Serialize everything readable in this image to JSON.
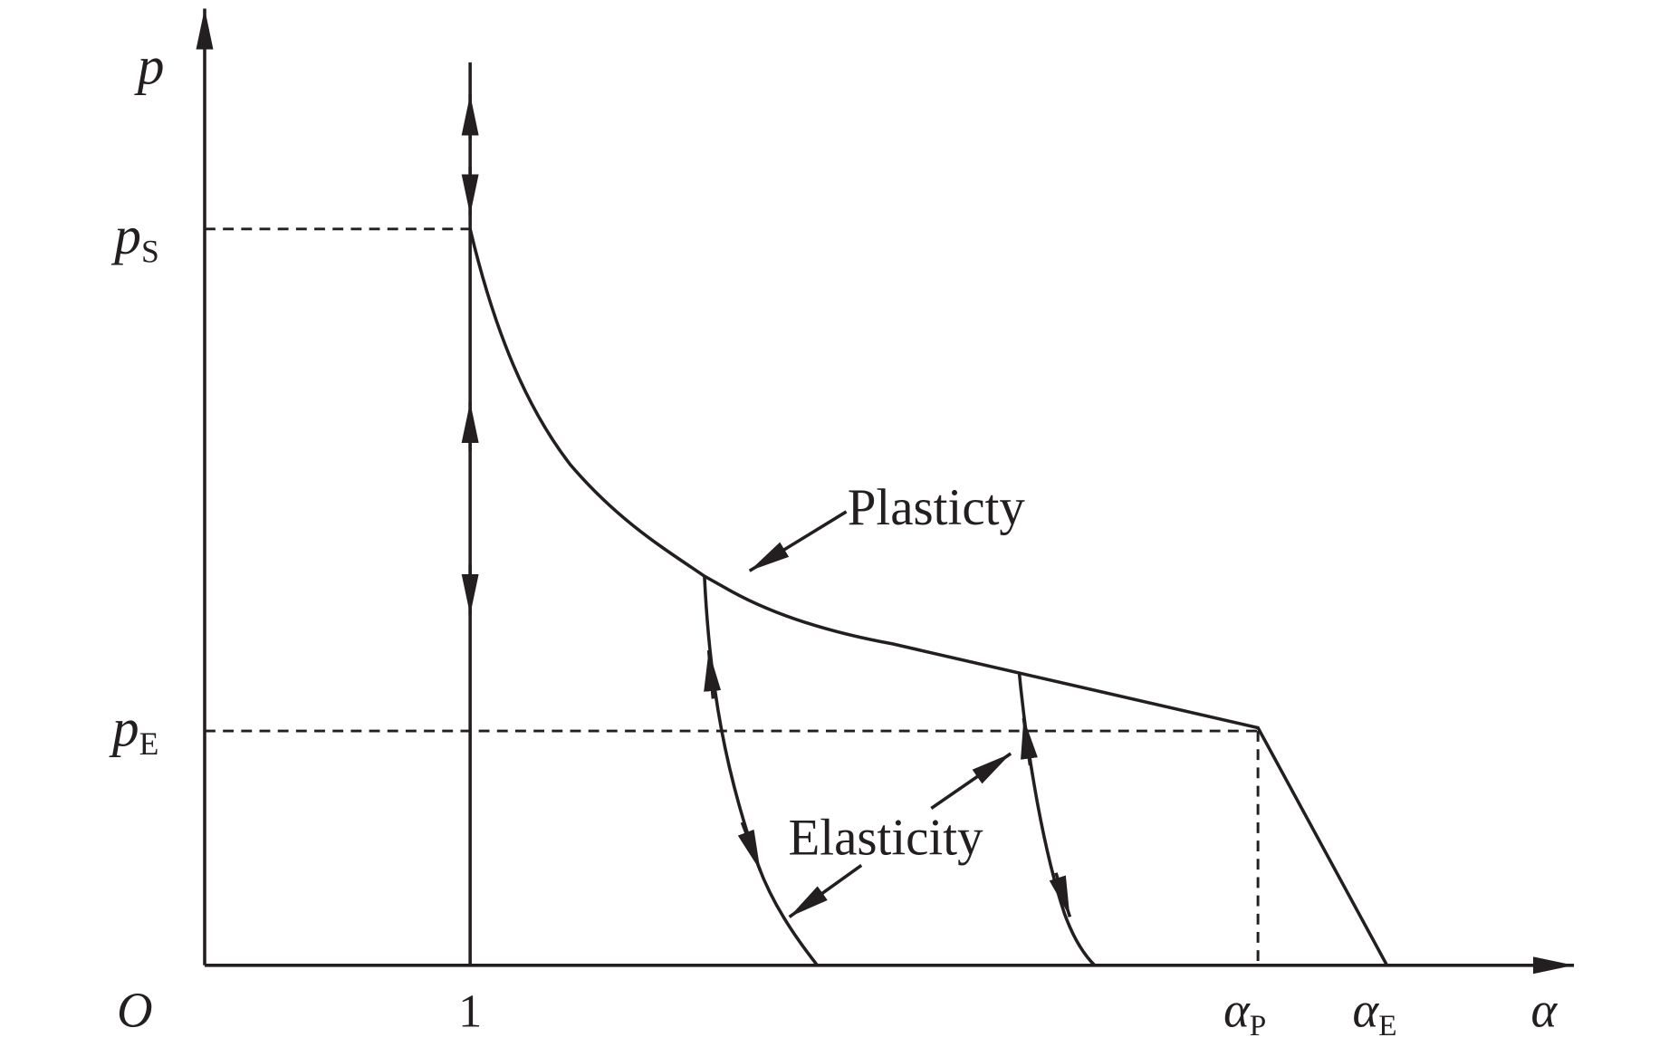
{
  "axes": {
    "y_label": "p",
    "x_label": "α",
    "origin": "O"
  },
  "ticks": {
    "x_one": "1",
    "p_s": {
      "main": "p",
      "sub": "S"
    },
    "p_e": {
      "main": "p",
      "sub": "E"
    },
    "alpha_p": {
      "main": "α",
      "sub": "P"
    },
    "alpha_e": {
      "main": "α",
      "sub": "E"
    }
  },
  "annotations": {
    "plastic": "Plasticty",
    "elastic": "Elasticity"
  }
}
